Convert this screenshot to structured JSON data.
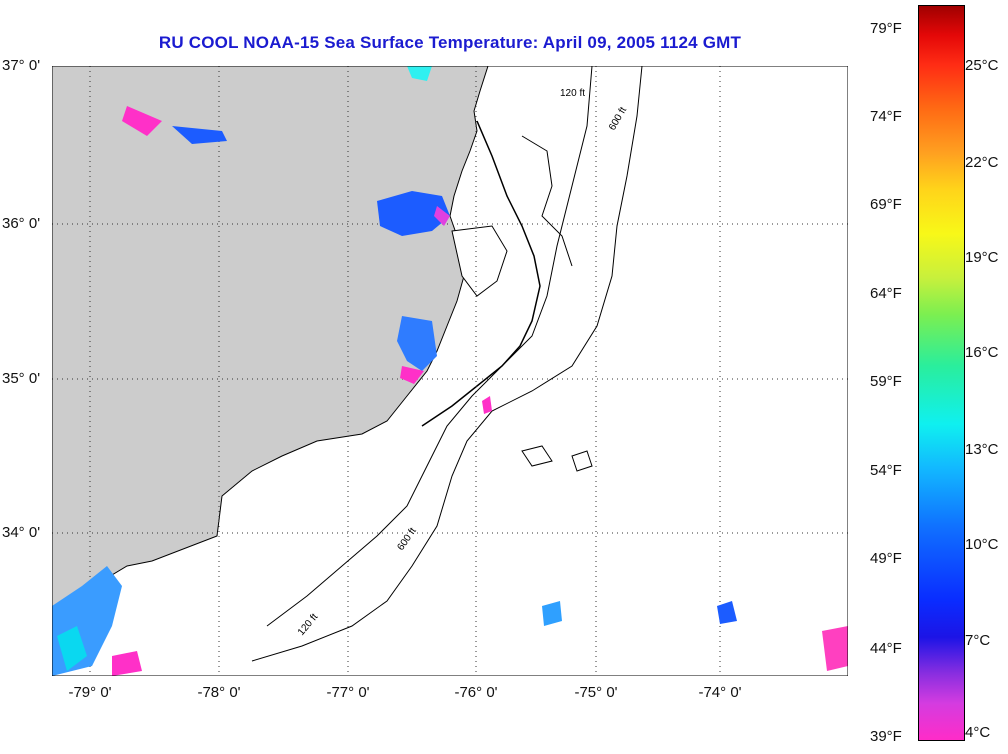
{
  "title": "RU COOL  NOAA-15  Sea Surface Temperature:  April 09, 2005 1124 GMT",
  "map": {
    "lon_range": [
      -79.3,
      -73.05
    ],
    "lat_range": [
      33.0,
      36.95
    ],
    "lat_ticks": [
      "37° 0'",
      "36° 0'",
      "35° 0'",
      "34° 0'"
    ],
    "lon_ticks": [
      "-79° 0'",
      "-78° 0'",
      "-77° 0'",
      "-76° 0'",
      "-75° 0'",
      "-74° 0'"
    ],
    "contour_labels": [
      "120 ft",
      "600 ft"
    ],
    "land_color": "#cccccc",
    "ocean_color": "#ffffff",
    "grid": "dotted"
  },
  "colorbar": {
    "fahrenheit": [
      "79°F",
      "74°F",
      "69°F",
      "64°F",
      "59°F",
      "54°F",
      "49°F",
      "44°F",
      "39°F"
    ],
    "celsius": [
      "25°C",
      "22°C",
      "19°C",
      "16°C",
      "13°C",
      "10°C",
      "7°C",
      "4°C"
    ],
    "range_c": [
      4,
      27
    ]
  }
}
